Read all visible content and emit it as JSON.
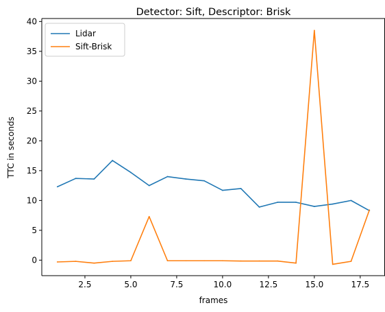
{
  "chart_data": {
    "type": "line",
    "title": "Detector: Sift, Descriptor: Brisk",
    "xlabel": "frames",
    "ylabel": "TTC in seconds",
    "xlim": [
      0.15,
      18.85
    ],
    "ylim": [
      -2.6,
      40.5
    ],
    "xticks": [
      2.5,
      5.0,
      7.5,
      10.0,
      12.5,
      15.0,
      17.5
    ],
    "xtick_labels": [
      "2.5",
      "5.0",
      "7.5",
      "10.0",
      "12.5",
      "15.0",
      "17.5"
    ],
    "yticks": [
      0,
      5,
      10,
      15,
      20,
      25,
      30,
      35,
      40
    ],
    "ytick_labels": [
      "0",
      "5",
      "10",
      "15",
      "20",
      "25",
      "30",
      "35",
      "40"
    ],
    "legend_position": "top-left",
    "grid": false,
    "x": [
      1,
      2,
      3,
      4,
      5,
      6,
      7,
      8,
      9,
      10,
      11,
      12,
      13,
      14,
      15,
      16,
      17,
      18
    ],
    "series": [
      {
        "name": "Lidar",
        "color": "#1f77b4",
        "values": [
          12.3,
          13.7,
          13.6,
          16.7,
          14.7,
          12.5,
          14.0,
          13.6,
          13.3,
          11.7,
          12.0,
          8.9,
          9.7,
          9.7,
          9.0,
          9.4,
          10.0,
          8.3
        ]
      },
      {
        "name": "Sift-Brisk",
        "color": "#ff7f0e",
        "values": [
          -0.3,
          -0.2,
          -0.5,
          -0.2,
          -0.1,
          7.3,
          -0.1,
          -0.1,
          -0.1,
          -0.1,
          -0.15,
          -0.15,
          -0.15,
          -0.5,
          38.5,
          -0.7,
          -0.2,
          8.4
        ]
      }
    ]
  }
}
